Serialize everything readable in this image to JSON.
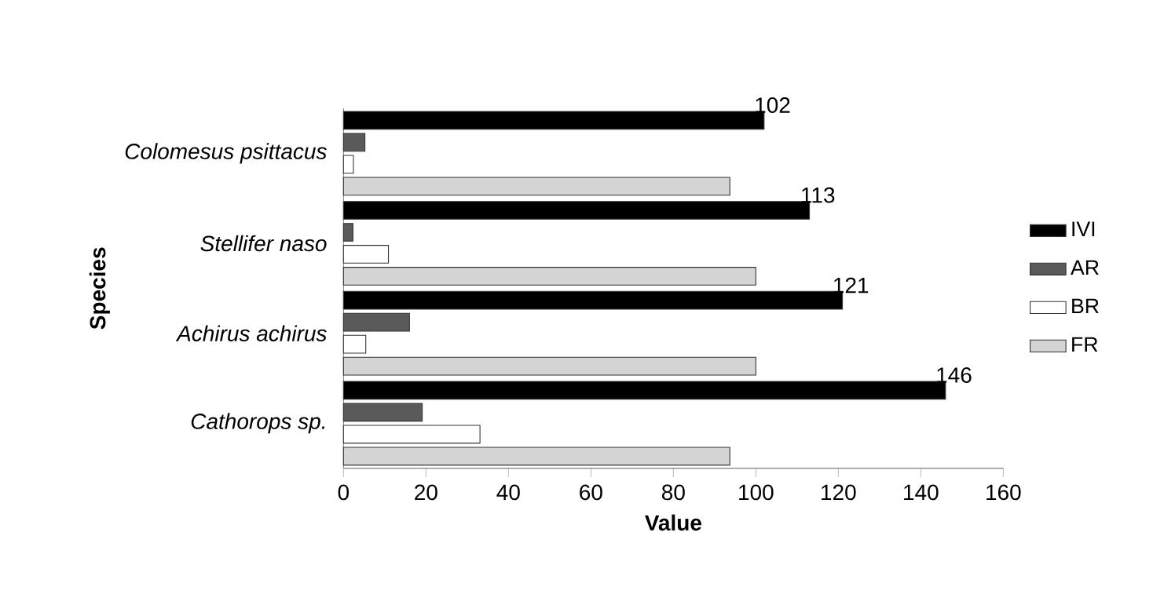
{
  "chart_data": {
    "type": "bar",
    "orientation": "horizontal",
    "xlabel": "Value",
    "ylabel": "Species",
    "categories": [
      "Colomesus psittacus",
      "Stellifer naso",
      "Achirus achirus",
      "Cathorops sp."
    ],
    "series": [
      {
        "name": "IVI",
        "color": "#000000",
        "values": [
          102,
          113,
          121,
          146
        ],
        "value_labels": [
          "102",
          "113",
          "121",
          "146"
        ]
      },
      {
        "name": "AR",
        "color": "#5a5a5a",
        "values": [
          5.2,
          2.3,
          16,
          19.1
        ]
      },
      {
        "name": "BR",
        "color": "#ffffff",
        "values": [
          2.4,
          10.9,
          5.4,
          33.1
        ]
      },
      {
        "name": "FR",
        "color": "#d4d4d4",
        "values": [
          93.7,
          100,
          100,
          93.7
        ]
      }
    ],
    "xlim": [
      0,
      160
    ],
    "xticks": [
      0,
      20,
      40,
      60,
      80,
      100,
      120,
      140,
      160
    ],
    "legend": "right",
    "grid": false
  }
}
